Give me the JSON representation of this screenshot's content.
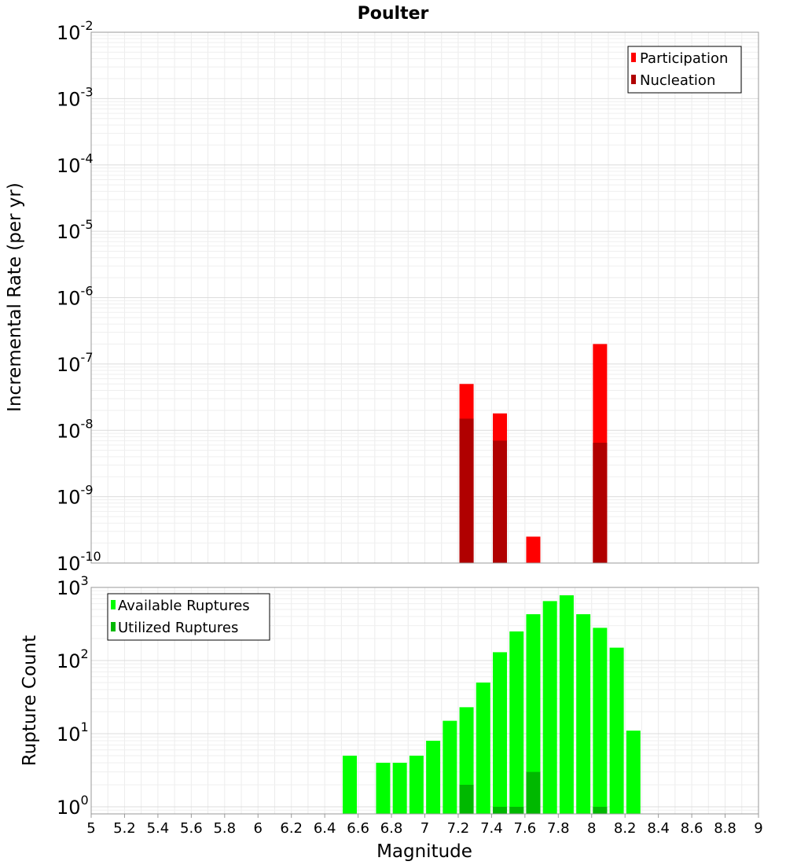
{
  "title": "Poulter",
  "chart_data": [
    {
      "type": "bar",
      "ylabel": "Incremental Rate (per yr)",
      "yscale": "log",
      "ylim": [
        1e-10,
        0.01
      ],
      "xlim": [
        5,
        9
      ],
      "ytick_exponents": [
        "-2",
        "-3",
        "-4",
        "-5",
        "-6",
        "-7",
        "-8",
        "-9",
        "-10"
      ],
      "ytick_base": "10",
      "legend_position": "top-right",
      "series": [
        {
          "name": "Participation",
          "color": "#ff0000",
          "x": [
            7.25,
            7.45,
            7.65,
            8.05
          ],
          "values": [
            5e-08,
            1.8e-08,
            2.5e-10,
            2e-07
          ]
        },
        {
          "name": "Nucleation",
          "color": "#b00000",
          "x": [
            7.25,
            7.45,
            8.05
          ],
          "values": [
            1.5e-08,
            7e-09,
            6.5e-09
          ]
        }
      ]
    },
    {
      "type": "bar",
      "xlabel": "Magnitude",
      "ylabel": "Rupture Count",
      "yscale": "log",
      "ylim": [
        0.8,
        1000
      ],
      "xlim": [
        5,
        9
      ],
      "ytick_exponents": [
        "3",
        "2",
        "1",
        "0"
      ],
      "ytick_base": "10",
      "xticks": [
        "5",
        "5.2",
        "5.4",
        "5.6",
        "5.8",
        "6",
        "6.2",
        "6.4",
        "6.6",
        "6.8",
        "7",
        "7.2",
        "7.4",
        "7.6",
        "7.8",
        "8",
        "8.2",
        "8.4",
        "8.6",
        "8.8",
        "9"
      ],
      "legend_position": "top-left",
      "series": [
        {
          "name": "Available Ruptures",
          "color": "#00ff00",
          "x": [
            6.55,
            6.75,
            6.85,
            6.95,
            7.05,
            7.15,
            7.25,
            7.35,
            7.45,
            7.55,
            7.65,
            7.75,
            7.85,
            7.95,
            8.05,
            8.15,
            8.25
          ],
          "values": [
            5,
            4,
            4,
            5,
            8,
            15,
            23,
            50,
            130,
            250,
            430,
            650,
            780,
            430,
            280,
            150,
            11
          ]
        },
        {
          "name": "Utilized Ruptures",
          "color": "#00b800",
          "x": [
            7.25,
            7.45,
            7.55,
            7.65,
            8.05
          ],
          "values": [
            2,
            1,
            1,
            3,
            1
          ]
        }
      ]
    }
  ]
}
